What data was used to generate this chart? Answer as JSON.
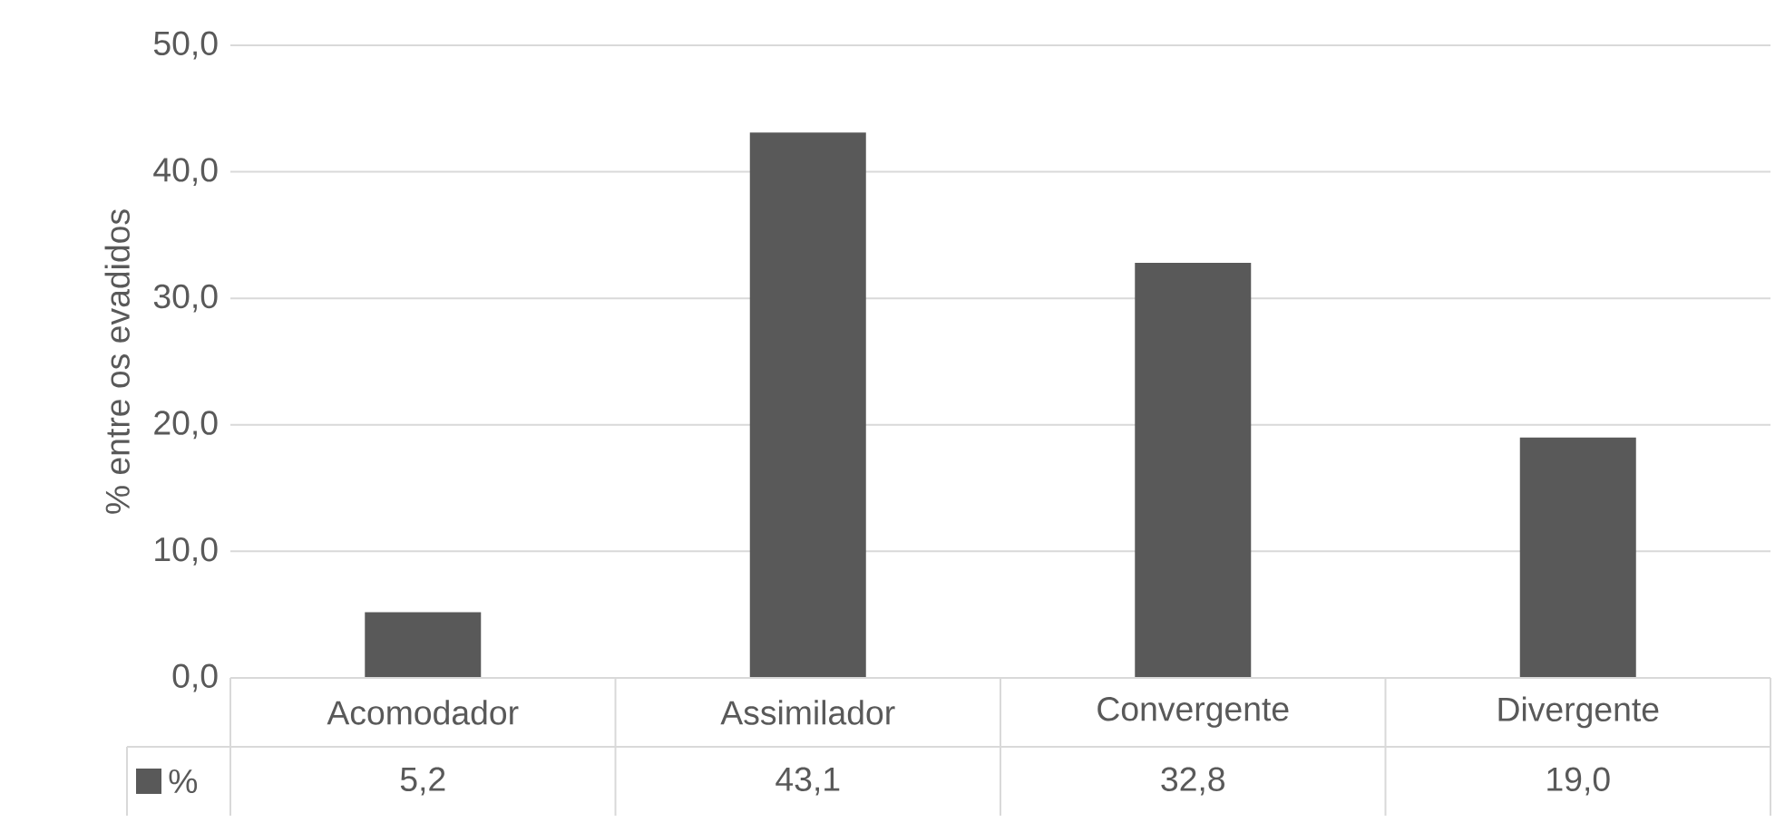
{
  "chart_data": {
    "type": "bar",
    "ylabel": "% entre os evadidos",
    "categories": [
      "Acomodador",
      "Assimilador",
      "Convergente",
      "Divergente"
    ],
    "series": [
      {
        "name": "%",
        "color": "#595959",
        "values": [
          5.2,
          43.1,
          32.8,
          19.0
        ],
        "value_labels": [
          "5,2",
          "43,1",
          "32,8",
          "19,0"
        ]
      }
    ],
    "ylim": [
      0,
      50
    ],
    "yticks": [
      {
        "value": 0,
        "label": "0,0"
      },
      {
        "value": 10,
        "label": "10,0"
      },
      {
        "value": 20,
        "label": "20,0"
      },
      {
        "value": 30,
        "label": "30,0"
      },
      {
        "value": 40,
        "label": "40,0"
      },
      {
        "value": 50,
        "label": "50,0"
      }
    ],
    "grid": "y",
    "legend": "bottom"
  }
}
